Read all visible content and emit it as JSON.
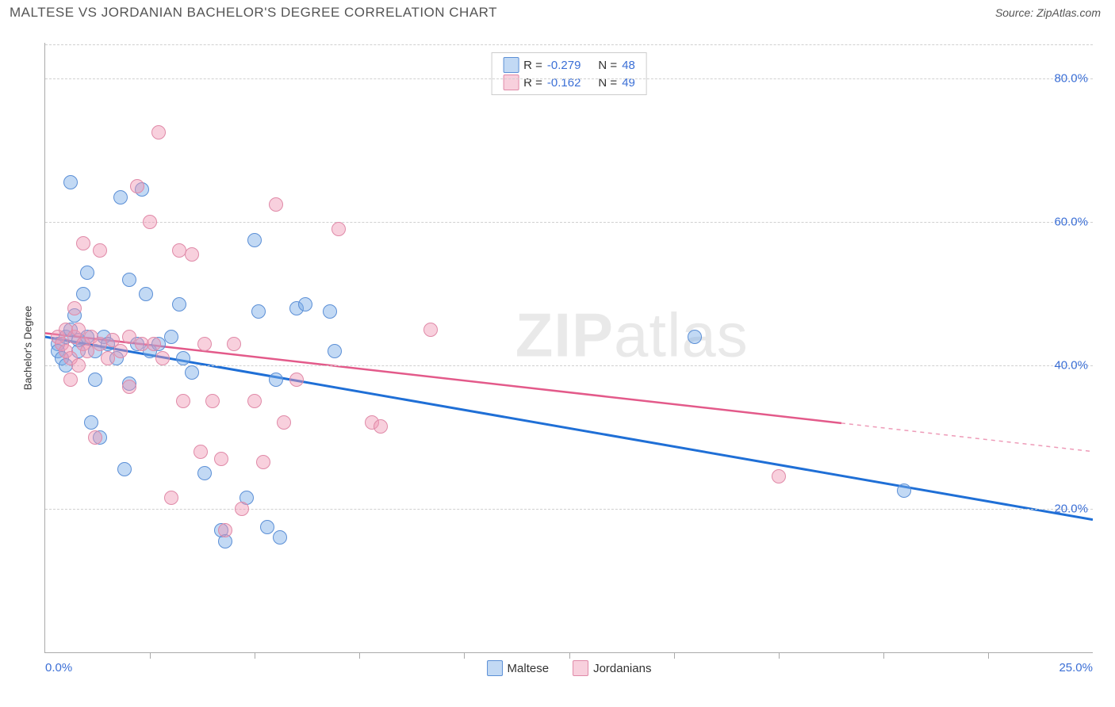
{
  "title": "MALTESE VS JORDANIAN BACHELOR'S DEGREE CORRELATION CHART",
  "source_label": "Source: ZipAtlas.com",
  "watermark_zip": "ZIP",
  "watermark_atlas": "atlas",
  "chart": {
    "type": "scatter",
    "y_axis_label": "Bachelor's Degree",
    "xlim": [
      0,
      25
    ],
    "ylim": [
      0,
      85
    ],
    "x_ticks_label": [
      "0.0%",
      "25.0%"
    ],
    "x_ticks_pos": [
      0,
      25
    ],
    "x_minor_ticks": [
      2.5,
      5,
      7.5,
      10,
      12.5,
      15,
      17.5,
      20,
      22.5
    ],
    "y_grid": [
      20,
      40,
      60,
      80
    ],
    "y_grid_labels": [
      "20.0%",
      "40.0%",
      "60.0%",
      "80.0%"
    ],
    "grid_color": "#d0d0d0",
    "background_color": "#ffffff",
    "series": [
      {
        "name": "Maltese",
        "fill": "rgba(120,170,230,0.45)",
        "stroke": "#5b8fd6",
        "trend_color": "#1f6fd6",
        "trend_width": 3,
        "r_value": "-0.279",
        "n_value": "48",
        "trend": {
          "x1": 0,
          "y1": 44,
          "x2": 25,
          "y2": 18.5,
          "solid_until": 25
        },
        "points": [
          [
            0.3,
            43
          ],
          [
            0.3,
            42
          ],
          [
            0.4,
            41
          ],
          [
            0.5,
            44
          ],
          [
            0.5,
            40
          ],
          [
            0.6,
            45
          ],
          [
            0.6,
            65.5
          ],
          [
            0.7,
            47
          ],
          [
            0.8,
            42
          ],
          [
            0.8,
            43.5
          ],
          [
            0.9,
            50
          ],
          [
            1.0,
            53
          ],
          [
            1.0,
            44
          ],
          [
            1.1,
            32
          ],
          [
            1.2,
            42
          ],
          [
            1.2,
            38
          ],
          [
            1.3,
            30
          ],
          [
            1.4,
            44
          ],
          [
            1.5,
            43
          ],
          [
            1.7,
            41
          ],
          [
            1.8,
            63.5
          ],
          [
            1.9,
            25.5
          ],
          [
            2.0,
            52
          ],
          [
            2.0,
            37.5
          ],
          [
            2.2,
            43
          ],
          [
            2.3,
            64.5
          ],
          [
            2.4,
            50
          ],
          [
            2.5,
            42
          ],
          [
            2.7,
            43
          ],
          [
            3.0,
            44
          ],
          [
            3.2,
            48.5
          ],
          [
            3.3,
            41
          ],
          [
            3.5,
            39
          ],
          [
            3.8,
            25
          ],
          [
            4.2,
            17
          ],
          [
            4.3,
            15.5
          ],
          [
            4.8,
            21.5
          ],
          [
            5.0,
            57.5
          ],
          [
            5.1,
            47.5
          ],
          [
            5.3,
            17.5
          ],
          [
            5.5,
            38
          ],
          [
            5.6,
            16
          ],
          [
            6.0,
            48
          ],
          [
            6.2,
            48.5
          ],
          [
            6.8,
            47.5
          ],
          [
            6.9,
            42
          ],
          [
            15.5,
            44
          ],
          [
            20.5,
            22.5
          ]
        ]
      },
      {
        "name": "Jordanians",
        "fill": "rgba(240,150,180,0.45)",
        "stroke": "#e08aa8",
        "trend_color": "#e35a8a",
        "trend_width": 2.5,
        "r_value": "-0.162",
        "n_value": "49",
        "trend": {
          "x1": 0,
          "y1": 44.5,
          "x2": 25,
          "y2": 28,
          "solid_until": 19
        },
        "points": [
          [
            0.3,
            44
          ],
          [
            0.4,
            43
          ],
          [
            0.5,
            42
          ],
          [
            0.5,
            45
          ],
          [
            0.6,
            41
          ],
          [
            0.6,
            38
          ],
          [
            0.7,
            44
          ],
          [
            0.7,
            48
          ],
          [
            0.8,
            45
          ],
          [
            0.8,
            40
          ],
          [
            0.9,
            57
          ],
          [
            0.9,
            43
          ],
          [
            1.0,
            42
          ],
          [
            1.1,
            44
          ],
          [
            1.2,
            30
          ],
          [
            1.3,
            56
          ],
          [
            1.3,
            43
          ],
          [
            1.5,
            41
          ],
          [
            1.6,
            43.5
          ],
          [
            1.8,
            42
          ],
          [
            2.0,
            37
          ],
          [
            2.0,
            44
          ],
          [
            2.2,
            65
          ],
          [
            2.3,
            43
          ],
          [
            2.5,
            60
          ],
          [
            2.6,
            43
          ],
          [
            2.7,
            72.5
          ],
          [
            2.8,
            41
          ],
          [
            3.0,
            21.5
          ],
          [
            3.2,
            56
          ],
          [
            3.3,
            35
          ],
          [
            3.5,
            55.5
          ],
          [
            3.7,
            28
          ],
          [
            3.8,
            43
          ],
          [
            4.0,
            35
          ],
          [
            4.2,
            27
          ],
          [
            4.3,
            17
          ],
          [
            4.5,
            43
          ],
          [
            4.7,
            20
          ],
          [
            5.0,
            35
          ],
          [
            5.2,
            26.5
          ],
          [
            5.5,
            62.5
          ],
          [
            5.7,
            32
          ],
          [
            6.0,
            38
          ],
          [
            7.0,
            59
          ],
          [
            7.8,
            32
          ],
          [
            8.0,
            31.5
          ],
          [
            9.2,
            45
          ],
          [
            17.5,
            24.5
          ]
        ]
      }
    ]
  },
  "bottom_legend": [
    {
      "label": "Maltese",
      "fill": "rgba(120,170,230,0.55)",
      "stroke": "#5b8fd6"
    },
    {
      "label": "Jordanians",
      "fill": "rgba(240,150,180,0.55)",
      "stroke": "#e08aa8"
    }
  ]
}
